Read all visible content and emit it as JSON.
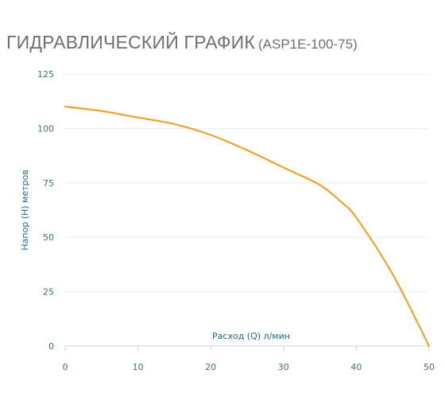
{
  "header": {
    "title": "ГИДРАВЛИЧЕСКИЙ ГРАФИК",
    "model": "(ASP1E-100-75)"
  },
  "colors": {
    "curve": "#f0a02d",
    "grid": "#e6eef3",
    "axis": "#c9d6de",
    "text": "#3d6f8d"
  },
  "chart_data": {
    "type": "line",
    "title": "ГИДРАВЛИЧЕСКИЙ ГРАФИК (ASP1E-100-75)",
    "xlabel": "Расход (Q) л/мин",
    "ylabel": "Напор (H) метров",
    "xlim": [
      0,
      50
    ],
    "ylim": [
      0,
      125
    ],
    "x_ticks": [
      "0",
      "10",
      "20",
      "30",
      "40",
      "50"
    ],
    "y_ticks": [
      "0",
      "25",
      "50",
      "75",
      "100",
      "125"
    ],
    "grid": "horizontal",
    "series": [
      {
        "x": [
          0,
          5,
          10,
          15,
          20,
          25,
          30,
          35,
          38,
          40,
          45,
          50
        ],
        "y": [
          110,
          108,
          105,
          102,
          97,
          90,
          82,
          74,
          66,
          59,
          33,
          0
        ]
      }
    ]
  }
}
